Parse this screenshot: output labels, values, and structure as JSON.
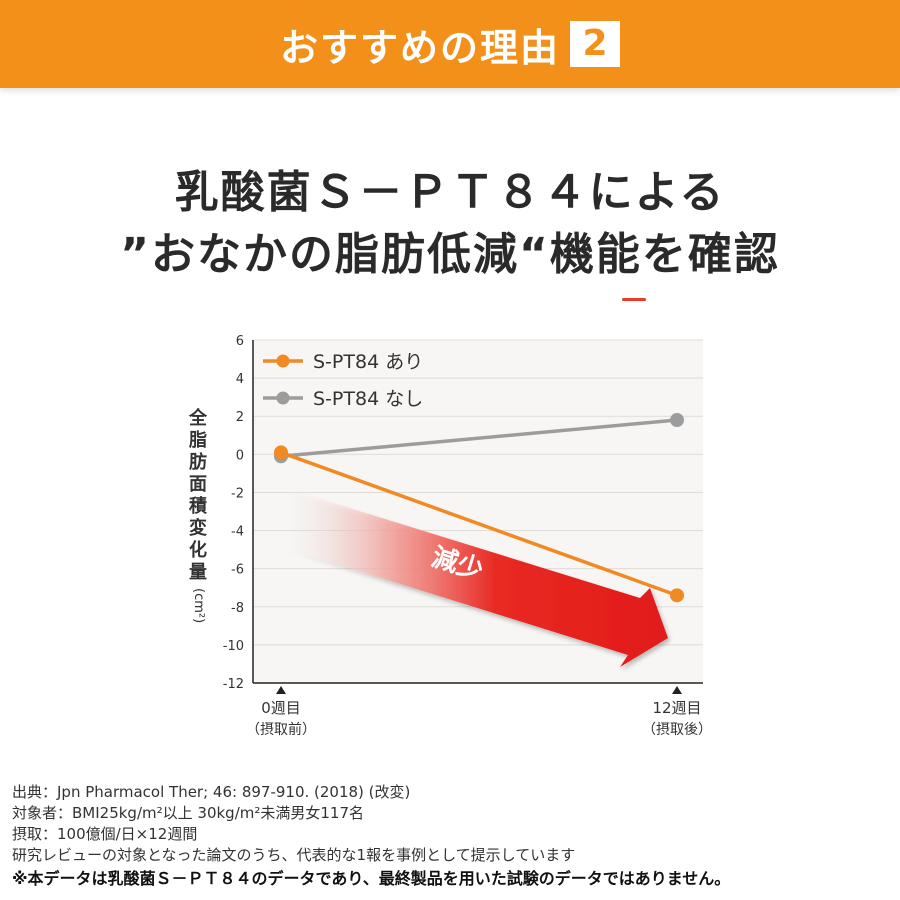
{
  "banner": {
    "title": "おすすめの理由",
    "badge": "2"
  },
  "headline": {
    "line1": "乳酸菌Ｓ－ＰＴ８４による",
    "line2": "”おなかの脂肪低減“機能を確認"
  },
  "chart_data": {
    "type": "line",
    "categories": [
      "0週目",
      "12週目"
    ],
    "category_sublabels": [
      "（摂取前）",
      "（摂取後）"
    ],
    "ylabel_chars": [
      "全",
      "脂",
      "肪",
      "面",
      "積",
      "変",
      "化",
      "量"
    ],
    "ylabel_unit": "(cm²)",
    "ylim": [
      -12,
      6
    ],
    "yticks": [
      6,
      4,
      2,
      0,
      -2,
      -4,
      -6,
      -8,
      -10,
      -12
    ],
    "series": [
      {
        "name": "S-PT84 あり",
        "values": [
          0.1,
          -7.4
        ],
        "color": "#f08a24"
      },
      {
        "name": "S-PT84 なし",
        "values": [
          -0.1,
          1.8
        ],
        "color": "#9c9c9c"
      }
    ],
    "annotation": "減少",
    "legend_position": "top-left",
    "grid": true
  },
  "notes": {
    "source": "出典：Jpn Pharmacol Ther; 46: 897-910. (2018) (改変)",
    "subjects": "対象者：BMI25kg/m²以上 30kg/m²未満男女117名",
    "intake": "摂取：100億個/日×12週間",
    "review": "研究レビューの対象となった論文のうち、代表的な1報を事例として提示しています",
    "warning": "※本データは乳酸菌Ｓ－ＰＴ８４のデータであり、最終製品を用いた試験のデータではありません。"
  }
}
